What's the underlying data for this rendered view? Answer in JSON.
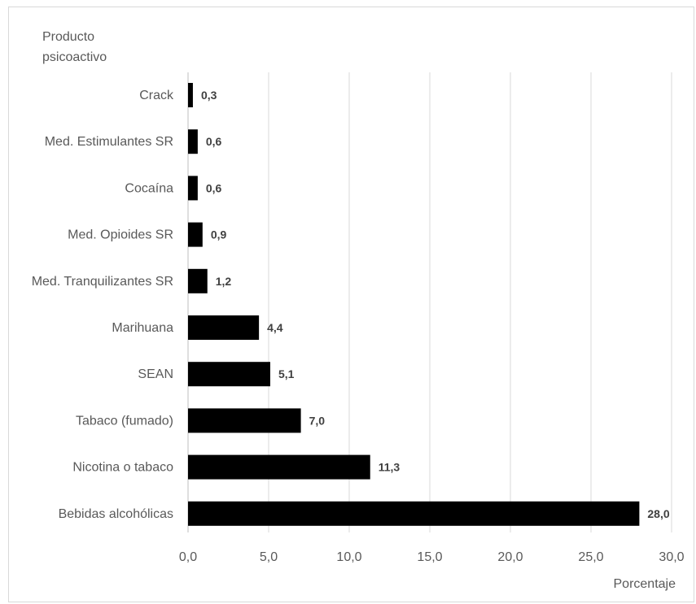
{
  "chart_data": {
    "type": "bar",
    "orientation": "horizontal",
    "ylabel": "Producto psicoactivo",
    "ylabel_lines": [
      "Producto",
      "psicoactivo"
    ],
    "xlabel": "Porcentaje",
    "categories": [
      "Crack",
      "Med. Estimulantes SR",
      "Cocaína",
      "Med. Opioides SR",
      "Med. Tranquilizantes SR",
      "Marihuana",
      "SEAN",
      "Tabaco (fumado)",
      "Nicotina o tabaco",
      "Bebidas alcohólicas"
    ],
    "values": [
      0.3,
      0.6,
      0.6,
      0.9,
      1.2,
      4.4,
      5.1,
      7.0,
      11.3,
      28.0
    ],
    "value_labels": [
      "0,3",
      "0,6",
      "0,6",
      "0,9",
      "1,2",
      "4,4",
      "5,1",
      "7,0",
      "11,3",
      "28,0"
    ],
    "xlim": [
      0,
      30
    ],
    "xticks": [
      0,
      5,
      10,
      15,
      20,
      25,
      30
    ],
    "xtick_labels": [
      "0,0",
      "5,0",
      "10,0",
      "15,0",
      "20,0",
      "25,0",
      "30,0"
    ],
    "grid": "vertical",
    "legend": "none",
    "bar_color": "#000000"
  }
}
